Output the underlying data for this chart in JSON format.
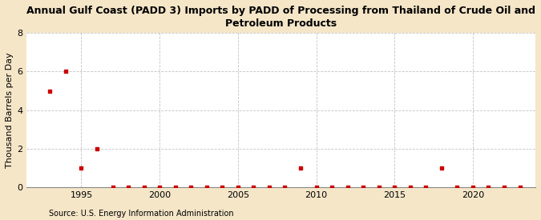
{
  "title": "Annual Gulf Coast (PADD 3) Imports by PADD of Processing from Thailand of Crude Oil and\nPetroleum Products",
  "ylabel": "Thousand Barrels per Day",
  "source": "Source: U.S. Energy Information Administration",
  "fig_background_color": "#f5e6c8",
  "plot_background_color": "#ffffff",
  "scatter_color": "#cc0000",
  "grid_color": "#aaaaaa",
  "xlim": [
    1991.5,
    2024
  ],
  "ylim": [
    0,
    8
  ],
  "yticks": [
    0,
    2,
    4,
    6,
    8
  ],
  "xticks": [
    1995,
    2000,
    2005,
    2010,
    2015,
    2020
  ],
  "data": {
    "years": [
      1993,
      1994,
      1995,
      1996,
      1997,
      1998,
      1999,
      2000,
      2001,
      2002,
      2003,
      2004,
      2005,
      2006,
      2007,
      2008,
      2009,
      2010,
      2011,
      2012,
      2013,
      2014,
      2015,
      2016,
      2017,
      2018,
      2019,
      2020,
      2021,
      2022,
      2023
    ],
    "values": [
      5.0,
      6.0,
      1.0,
      2.0,
      0.0,
      0.0,
      0.0,
      0.0,
      0.0,
      0.0,
      0.0,
      0.0,
      0.0,
      0.0,
      0.0,
      0.0,
      1.0,
      0.0,
      0.0,
      0.0,
      0.0,
      0.0,
      0.0,
      0.0,
      0.0,
      1.0,
      0.0,
      0.0,
      0.0,
      0.0,
      0.0
    ]
  },
  "title_fontsize": 9,
  "ylabel_fontsize": 8,
  "tick_fontsize": 8,
  "source_fontsize": 7
}
